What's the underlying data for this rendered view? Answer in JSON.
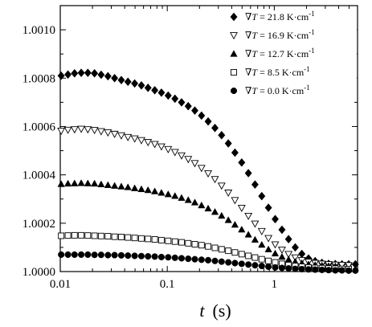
{
  "chart_data": {
    "type": "scatter",
    "title": "",
    "xlabel": "t (s)",
    "xlabel_parts": {
      "var": "t",
      "unit": "(s)"
    },
    "ylabel": "",
    "x_scale": "log",
    "xlim": [
      0.01,
      6
    ],
    "ylim": [
      1.0,
      1.0011
    ],
    "x_ticks": [
      {
        "value": 0.01,
        "label": "0.01"
      },
      {
        "value": 0.1,
        "label": "0.1"
      },
      {
        "value": 1,
        "label": "1"
      }
    ],
    "y_ticks": [
      {
        "value": 1.0,
        "label": "1.0000"
      },
      {
        "value": 1.0002,
        "label": "1.0002"
      },
      {
        "value": 1.0004,
        "label": "1.0004"
      },
      {
        "value": 1.0006,
        "label": "1.0006"
      },
      {
        "value": 1.0008,
        "label": "1.0008"
      },
      {
        "value": 1.001,
        "label": "1.0010"
      }
    ],
    "grid": false,
    "legend_position": "top-right",
    "series": [
      {
        "name": "∇T = 21.8 K·cm⁻¹",
        "legend": {
          "symbol": "∇",
          "var": "T",
          "eq": " = 21.8 K·cm",
          "sup": "-1"
        },
        "marker": "diamond-filled",
        "x": [
          0.0102,
          0.0118,
          0.0136,
          0.0157,
          0.0181,
          0.0209,
          0.0241,
          0.0279,
          0.0322,
          0.0372,
          0.0429,
          0.0496,
          0.0573,
          0.0661,
          0.0764,
          0.0882,
          0.102,
          0.118,
          0.136,
          0.157,
          0.181,
          0.209,
          0.241,
          0.279,
          0.322,
          0.372,
          0.429,
          0.496,
          0.573,
          0.661,
          0.764,
          0.882,
          1.02,
          1.18,
          1.36,
          1.57,
          1.81,
          2.09,
          2.41,
          2.79,
          3.22,
          3.72,
          4.29,
          4.96,
          5.73
        ],
        "y": [
          1.00081,
          1.000815,
          1.00082,
          1.000822,
          1.000822,
          1.00082,
          1.000814,
          1.000808,
          1.0008,
          1.000792,
          1.000785,
          1.000778,
          1.00077,
          1.00076,
          1.00075,
          1.00074,
          1.000728,
          1.000715,
          1.0007,
          1.000684,
          1.000666,
          1.000645,
          1.000621,
          1.000594,
          1.000564,
          1.00053,
          1.000492,
          1.000451,
          1.000407,
          1.00036,
          1.000312,
          1.000264,
          1.000217,
          1.000173,
          1.000134,
          1.0001,
          1.000073,
          1.000054,
          1.000043,
          1.000036,
          1.000032,
          1.000031,
          1.00003,
          1.00003,
          1.00003
        ]
      },
      {
        "name": "∇T = 16.9 K·cm⁻¹",
        "legend": {
          "symbol": "∇",
          "var": "T",
          "eq": " = 16.9 K·cm",
          "sup": "-1"
        },
        "marker": "triangle-down-open",
        "x": [
          0.0102,
          0.0118,
          0.0136,
          0.0157,
          0.0181,
          0.0209,
          0.0241,
          0.0279,
          0.0322,
          0.0372,
          0.0429,
          0.0496,
          0.0573,
          0.0661,
          0.0764,
          0.0882,
          0.102,
          0.118,
          0.136,
          0.157,
          0.181,
          0.209,
          0.241,
          0.279,
          0.322,
          0.372,
          0.429,
          0.496,
          0.573,
          0.661,
          0.764,
          0.882,
          1.02,
          1.18,
          1.36,
          1.57,
          1.81,
          2.09,
          2.41,
          2.79,
          3.22,
          3.72,
          4.29,
          4.96
        ],
        "y": [
          1.000582,
          1.000586,
          1.000588,
          1.00059,
          1.000588,
          1.000585,
          1.00058,
          1.000575,
          1.000569,
          1.000563,
          1.000556,
          1.00055,
          1.000543,
          1.000535,
          1.000527,
          1.000517,
          1.000506,
          1.000494,
          1.00048,
          1.000465,
          1.000448,
          1.000428,
          1.000406,
          1.000382,
          1.000355,
          1.000326,
          1.000295,
          1.000263,
          1.00023,
          1.000198,
          1.000167,
          1.000138,
          1.000112,
          1.00009,
          1.000072,
          1.000058,
          1.000047,
          1.00004,
          1.000035,
          1.000032,
          1.00003,
          1.000028,
          1.000027,
          1.000026
        ]
      },
      {
        "name": "∇T = 12.7 K·cm⁻¹",
        "legend": {
          "symbol": "∇",
          "var": "T",
          "eq": " = 12.7 K·cm",
          "sup": "-1"
        },
        "marker": "triangle-up-filled",
        "x": [
          0.0102,
          0.0118,
          0.0136,
          0.0157,
          0.0181,
          0.0209,
          0.0241,
          0.0279,
          0.0322,
          0.0372,
          0.0429,
          0.0496,
          0.0573,
          0.0661,
          0.0764,
          0.0882,
          0.102,
          0.118,
          0.136,
          0.157,
          0.181,
          0.209,
          0.241,
          0.279,
          0.322,
          0.372,
          0.429,
          0.496,
          0.573,
          0.661,
          0.764,
          0.882,
          1.02,
          1.18,
          1.36,
          1.57,
          1.81,
          2.09,
          2.41,
          2.79,
          3.22,
          3.72
        ],
        "y": [
          1.000362,
          1.000364,
          1.000365,
          1.000366,
          1.000365,
          1.000364,
          1.000361,
          1.000358,
          1.000355,
          1.000352,
          1.000349,
          1.000345,
          1.000341,
          1.000337,
          1.000332,
          1.000326,
          1.00032,
          1.000313,
          1.000305,
          1.000296,
          1.000286,
          1.000274,
          1.000261,
          1.000247,
          1.000231,
          1.000213,
          1.000194,
          1.000174,
          1.000153,
          1.000132,
          1.000111,
          1.000092,
          1.000075,
          1.000061,
          1.00005,
          1.000041,
          1.000035,
          1.00003,
          1.000027,
          1.000025,
          1.000023,
          1.000022
        ]
      },
      {
        "name": "∇T = 8.5 K·cm⁻¹",
        "legend": {
          "symbol": "∇",
          "var": "T",
          "eq": " = 8.5 K·cm",
          "sup": "-1"
        },
        "marker": "square-open",
        "x": [
          0.0102,
          0.0118,
          0.0136,
          0.0157,
          0.0181,
          0.0209,
          0.0241,
          0.0279,
          0.0322,
          0.0372,
          0.0429,
          0.0496,
          0.0573,
          0.0661,
          0.0764,
          0.0882,
          0.102,
          0.118,
          0.136,
          0.157,
          0.181,
          0.209,
          0.241,
          0.279,
          0.322,
          0.372,
          0.429,
          0.496,
          0.573,
          0.661,
          0.764,
          0.882,
          1.02,
          1.18,
          1.36,
          1.57,
          1.81,
          2.09,
          2.41,
          2.79,
          3.22,
          3.72,
          4.29,
          4.96
        ],
        "y": [
          1.000148,
          1.000149,
          1.00015,
          1.00015,
          1.000149,
          1.000148,
          1.000147,
          1.000146,
          1.000144,
          1.000143,
          1.000141,
          1.000139,
          1.000137,
          1.000135,
          1.000133,
          1.00013,
          1.000127,
          1.000124,
          1.000121,
          1.000117,
          1.000113,
          1.000109,
          1.000104,
          1.000098,
          1.000092,
          1.000086,
          1.000079,
          1.000072,
          1.000065,
          1.000058,
          1.000051,
          1.000044,
          1.000038,
          1.000032,
          1.000027,
          1.000023,
          1.00002,
          1.000017,
          1.000015,
          1.000014,
          1.000013,
          1.000012,
          1.000011,
          1.00001
        ]
      },
      {
        "name": "∇T = 0.0 K·cm⁻¹",
        "legend": {
          "symbol": "∇",
          "var": "T",
          "eq": " =  0.0 K·cm",
          "sup": "-1"
        },
        "marker": "circle-filled",
        "x": [
          0.0102,
          0.0118,
          0.0136,
          0.0157,
          0.0181,
          0.0209,
          0.0241,
          0.0279,
          0.0322,
          0.0372,
          0.0429,
          0.0496,
          0.0573,
          0.0661,
          0.0764,
          0.0882,
          0.102,
          0.118,
          0.136,
          0.157,
          0.181,
          0.209,
          0.241,
          0.279,
          0.322,
          0.372,
          0.429,
          0.496,
          0.573,
          0.661,
          0.764,
          0.882,
          1.02,
          1.18,
          1.36,
          1.57,
          1.81,
          2.09,
          2.41,
          2.79,
          3.22,
          3.72,
          4.29,
          4.96,
          5.73
        ],
        "y": [
          1.00007,
          1.00007,
          1.00007,
          1.00007,
          1.00007,
          1.000069,
          1.000069,
          1.000068,
          1.000068,
          1.000067,
          1.000066,
          1.000065,
          1.000064,
          1.000063,
          1.000062,
          1.00006,
          1.000059,
          1.000057,
          1.000055,
          1.000053,
          1.000051,
          1.000049,
          1.000047,
          1.000044,
          1.000041,
          1.000038,
          1.000035,
          1.000032,
          1.000029,
          1.000026,
          1.000023,
          1.00002,
          1.000017,
          1.000015,
          1.000013,
          1.000011,
          1.00001,
          1.000009,
          1.000008,
          1.000007,
          1.000006,
          1.000005,
          1.000005,
          1.000004,
          1.000004
        ]
      }
    ]
  }
}
